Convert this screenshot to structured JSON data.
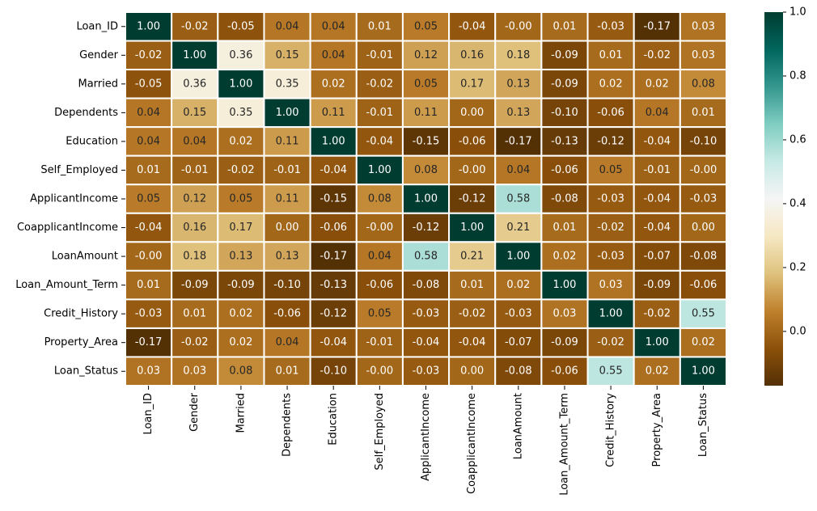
{
  "chart_data": {
    "type": "heatmap",
    "title": "",
    "xlabel": "",
    "ylabel": "",
    "variables": [
      "Loan_ID",
      "Gender",
      "Married",
      "Dependents",
      "Education",
      "Self_Employed",
      "ApplicantIncome",
      "CoapplicantIncome",
      "LoanAmount",
      "Loan_Amount_Term",
      "Credit_History",
      "Property_Area",
      "Loan_Status"
    ],
    "matrix": [
      [
        1.0,
        -0.02,
        -0.05,
        0.04,
        0.04,
        0.01,
        0.05,
        -0.04,
        -0.0,
        0.01,
        -0.03,
        -0.17,
        0.03
      ],
      [
        -0.02,
        1.0,
        0.36,
        0.15,
        0.04,
        -0.01,
        0.12,
        0.16,
        0.18,
        -0.09,
        0.01,
        -0.02,
        0.03
      ],
      [
        -0.05,
        0.36,
        1.0,
        0.35,
        0.02,
        -0.02,
        0.05,
        0.17,
        0.13,
        -0.09,
        0.02,
        0.02,
        0.08
      ],
      [
        0.04,
        0.15,
        0.35,
        1.0,
        0.11,
        -0.01,
        0.11,
        0.0,
        0.13,
        -0.1,
        -0.06,
        0.04,
        0.01
      ],
      [
        0.04,
        0.04,
        0.02,
        0.11,
        1.0,
        -0.04,
        -0.15,
        -0.06,
        -0.17,
        -0.13,
        -0.12,
        -0.04,
        -0.1
      ],
      [
        0.01,
        -0.01,
        -0.02,
        -0.01,
        -0.04,
        1.0,
        0.08,
        -0.0,
        0.04,
        -0.06,
        0.05,
        -0.01,
        -0.0
      ],
      [
        0.05,
        0.12,
        0.05,
        0.11,
        -0.15,
        0.08,
        1.0,
        -0.12,
        0.58,
        -0.08,
        -0.03,
        -0.04,
        -0.03
      ],
      [
        -0.04,
        0.16,
        0.17,
        0.0,
        -0.06,
        -0.0,
        -0.12,
        1.0,
        0.21,
        0.01,
        -0.02,
        -0.04,
        0.0
      ],
      [
        -0.0,
        0.18,
        0.13,
        0.13,
        -0.17,
        0.04,
        0.58,
        0.21,
        1.0,
        0.02,
        -0.03,
        -0.07,
        -0.08
      ],
      [
        0.01,
        -0.09,
        -0.09,
        -0.1,
        -0.13,
        -0.06,
        -0.08,
        0.01,
        0.02,
        1.0,
        0.03,
        -0.09,
        -0.06
      ],
      [
        -0.03,
        0.01,
        0.02,
        -0.06,
        -0.12,
        0.05,
        -0.03,
        -0.02,
        -0.03,
        0.03,
        1.0,
        -0.02,
        0.55
      ],
      [
        -0.17,
        -0.02,
        0.02,
        0.04,
        -0.04,
        -0.01,
        -0.04,
        -0.04,
        -0.07,
        -0.09,
        -0.02,
        1.0,
        0.02
      ],
      [
        0.03,
        0.03,
        0.08,
        0.01,
        -0.1,
        -0.0,
        -0.03,
        0.0,
        -0.08,
        -0.06,
        0.55,
        0.02,
        1.0
      ]
    ],
    "value_format": "2 decimals",
    "colormap": "BrBG",
    "colormap_stops": [
      "#543005",
      "#8c510a",
      "#bf812d",
      "#dfc27d",
      "#f6e8c3",
      "#f5f5f5",
      "#c7eae5",
      "#80cdc1",
      "#35978f",
      "#01665e",
      "#003c30"
    ],
    "color_range": [
      -0.17,
      1.0
    ],
    "colorbar": {
      "ticks": [
        0.0,
        0.2,
        0.4,
        0.6,
        0.8,
        1.0
      ],
      "tick_labels": [
        "0.0",
        "0.2",
        "0.4",
        "0.6",
        "0.8",
        "1.0"
      ],
      "placement": "right"
    },
    "grid": false,
    "cell_border_color": "#ffffff"
  }
}
